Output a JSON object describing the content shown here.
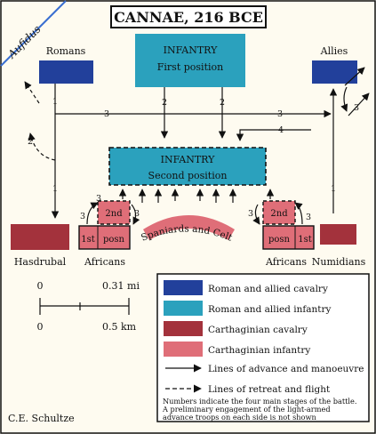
{
  "title": "CANNAE, 216 BCE",
  "river": "Aufidus",
  "units": {
    "roman_cavalry": "Romans",
    "allied_cavalry": "Allies",
    "infantry_first_title": "INFANTRY",
    "infantry_first_sub": "First position",
    "infantry_second_title": "INFANTRY",
    "infantry_second_sub": "Second position",
    "hasdrubal": "Hasdrubal",
    "africans_left": "Africans",
    "africans_right": "Africans",
    "numidians": "Numidians",
    "spaniards_celts": "Spaniards and Celts",
    "left_second": "2nd",
    "left_first": "1st",
    "left_posn": "posn",
    "right_second": "2nd",
    "right_first": "1st",
    "right_posn": "posn"
  },
  "stage_numbers": [
    "1",
    "2",
    "3",
    "4"
  ],
  "scale": {
    "zero_top": "0",
    "miles": "0.31 mi",
    "zero_bottom": "0",
    "km": "0.5 km"
  },
  "legend": {
    "roman_cavalry": "Roman and allied cavalry",
    "roman_infantry": "Roman and allied infantry",
    "carthaginian_cavalry": "Carthaginian cavalry",
    "carthaginian_infantry": "Carthaginian infantry",
    "advance": "Lines of advance and manoeuvre",
    "retreat": "Lines of retreat and flight",
    "note_1": "Numbers indicate the four main stages of the battle.",
    "note_2": "A preliminary engagement of the light-armed",
    "note_3": "advance troops on each side is not shown"
  },
  "credit": "C.E. Schultze",
  "colors": {
    "roman_cavalry": "#22409b",
    "roman_infantry": "#2ba1bd",
    "carthaginian_cavalry": "#a3323c",
    "carthaginian_infantry": "#df6e78",
    "background": "#fefbf0",
    "river": "#3a6fd1"
  }
}
